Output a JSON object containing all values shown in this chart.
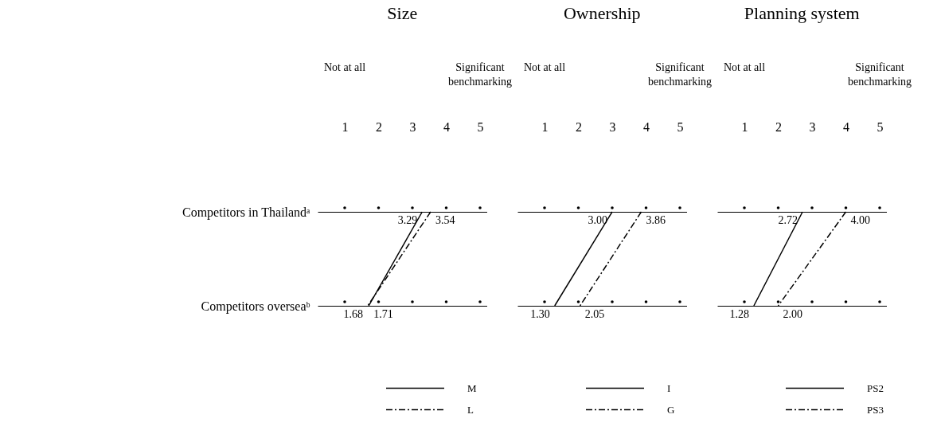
{
  "chart_data": [
    {
      "type": "line",
      "orientation": "horizontal",
      "title": "Size",
      "categories": [
        "Competitors in Thailandᵃ",
        "Competitors overseaᵇ"
      ],
      "xlim": [
        0.2,
        5.2
      ],
      "xticks": [
        1,
        2,
        3,
        4,
        5
      ],
      "annotations": [
        "Not at all",
        "Significant benchmarking"
      ],
      "grid": "y",
      "legend": "bottom",
      "series": [
        {
          "name": "M",
          "color": "#000000",
          "line_style": "solid",
          "values": [
            3.29,
            1.71
          ],
          "value_labels": [
            "3.29",
            "1.71"
          ]
        },
        {
          "name": "L",
          "color": "#000000",
          "line_style": "dashed",
          "values": [
            3.54,
            1.68
          ],
          "value_labels": [
            "3.54",
            "1.68"
          ]
        }
      ]
    },
    {
      "type": "line",
      "orientation": "horizontal",
      "title": "Ownership",
      "categories": [
        null,
        null
      ],
      "xlim": [
        0.2,
        5.2
      ],
      "xticks": [
        1,
        2,
        3,
        4,
        5
      ],
      "annotations": [
        "Not at all",
        "Significant benchmarking"
      ],
      "grid": "y",
      "legend": "bottom",
      "series": [
        {
          "name": "I",
          "color": "#000000",
          "line_style": "solid",
          "values": [
            3.0,
            1.3
          ],
          "value_labels": [
            "3.00",
            "1.30"
          ]
        },
        {
          "name": "G",
          "color": "#000000",
          "line_style": "dashed",
          "values": [
            3.86,
            2.05
          ],
          "value_labels": [
            "3.86",
            "2.05"
          ]
        }
      ]
    },
    {
      "type": "line",
      "orientation": "horizontal",
      "title": "Planning system",
      "categories": [
        null,
        null
      ],
      "xlim": [
        0.2,
        5.2
      ],
      "xticks": [
        1,
        2,
        3,
        4,
        5
      ],
      "annotations": [
        "Not at all",
        "Significant benchmarking"
      ],
      "grid": "y",
      "legend": "bottom",
      "series": [
        {
          "name": "PS2",
          "color": "#000000",
          "line_style": "solid",
          "values": [
            2.72,
            1.28
          ],
          "value_labels": [
            "2.72",
            "1.28"
          ]
        },
        {
          "name": "PS3",
          "color": "#000000",
          "line_style": "dashed",
          "values": [
            4.0,
            2.0
          ],
          "value_labels": [
            "4.00",
            "2.00"
          ]
        }
      ]
    }
  ]
}
